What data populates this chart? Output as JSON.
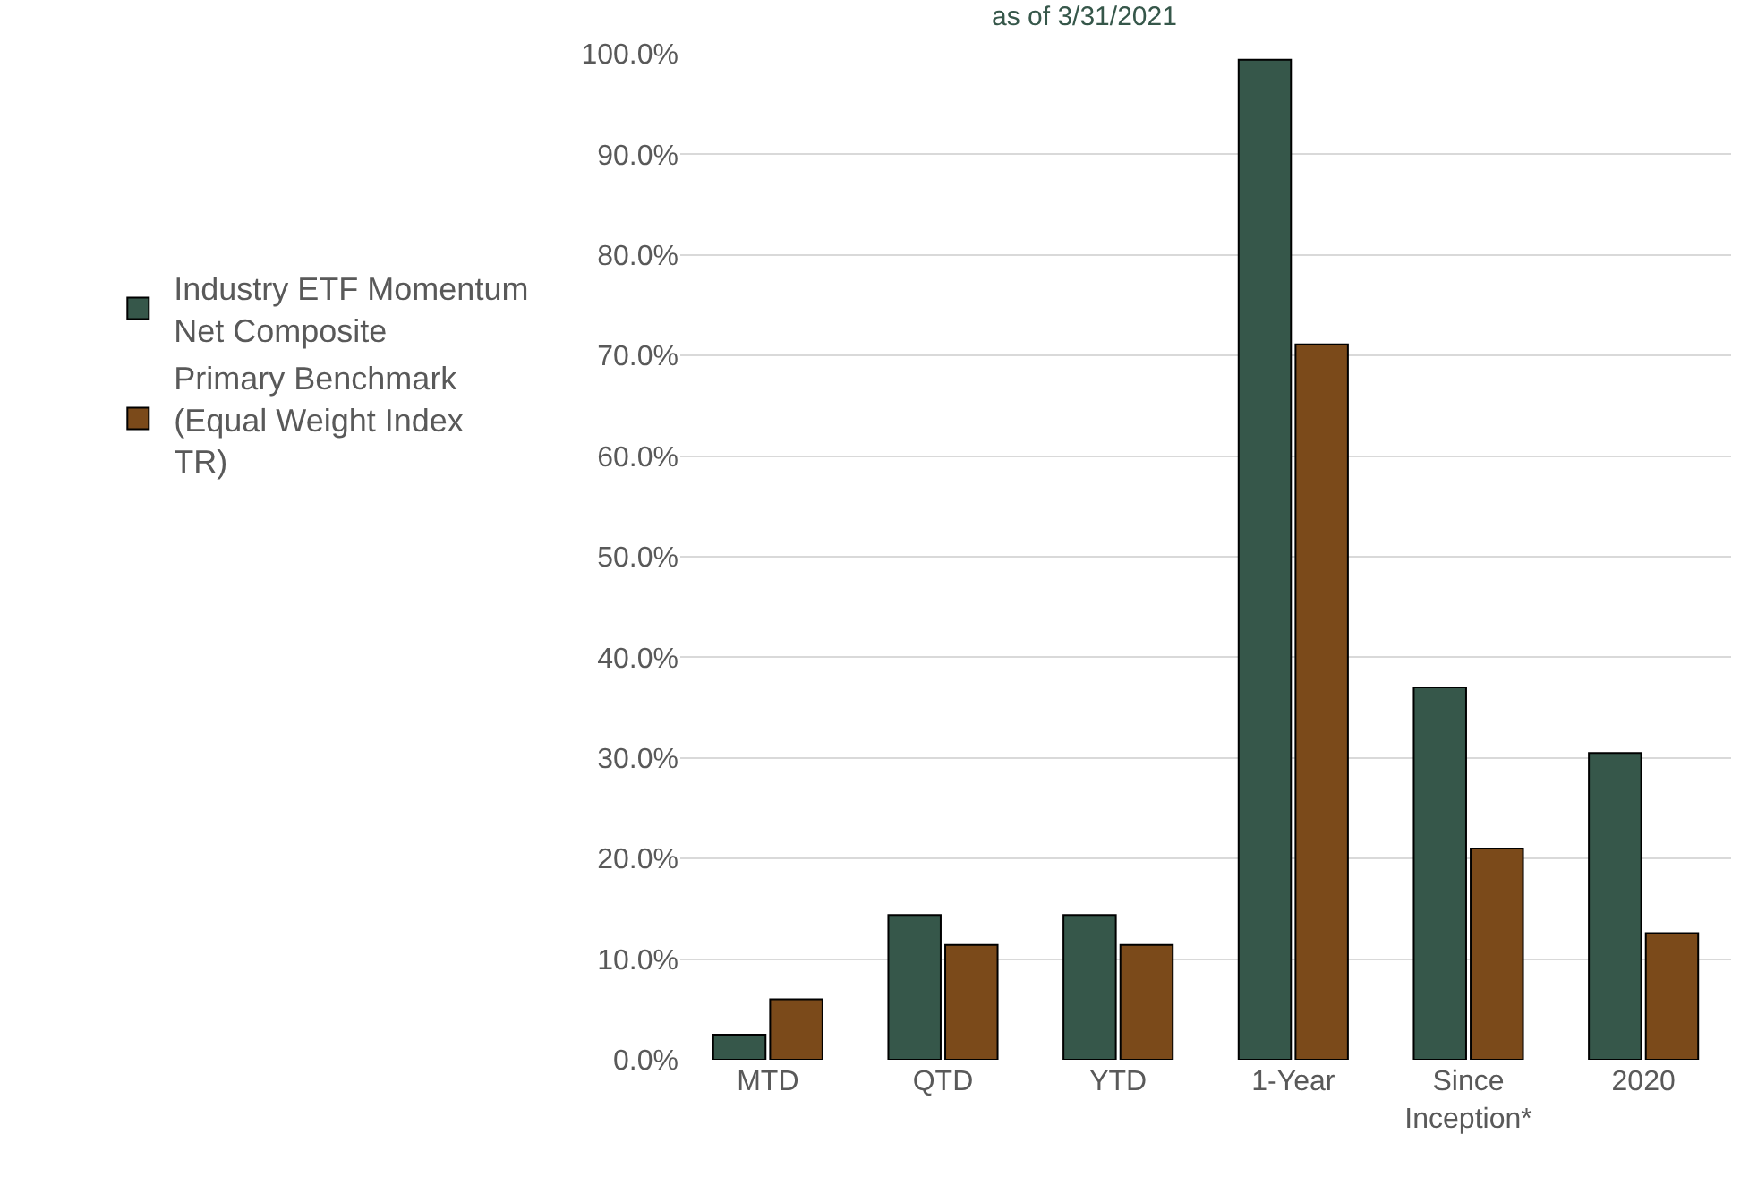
{
  "chart_data": {
    "type": "bar",
    "title": "as of 3/31/2021",
    "categories": [
      "MTD",
      "QTD",
      "YTD",
      "1-Year",
      "Since Inception*",
      "2020"
    ],
    "series": [
      {
        "name": "Industry ETF Momentum Net Composite",
        "color": "#36574a",
        "values": [
          2.5,
          14.4,
          14.4,
          99.4,
          37.0,
          30.5
        ]
      },
      {
        "name": "Primary Benchmark (Equal Weight Index TR)",
        "color": "#7b4a1a",
        "values": [
          6.0,
          11.4,
          11.4,
          71.1,
          21.0,
          12.6
        ]
      }
    ],
    "ylim": [
      0,
      100
    ],
    "yticks": [
      {
        "value": 0,
        "label": "0.0%"
      },
      {
        "value": 10,
        "label": "10.0%"
      },
      {
        "value": 20,
        "label": "20.0%"
      },
      {
        "value": 30,
        "label": "30.0%"
      },
      {
        "value": 40,
        "label": "40.0%"
      },
      {
        "value": 50,
        "label": "50.0%"
      },
      {
        "value": 60,
        "label": "60.0%"
      },
      {
        "value": 70,
        "label": "70.0%"
      },
      {
        "value": 80,
        "label": "80.0%"
      },
      {
        "value": 90,
        "label": "90.0%"
      },
      {
        "value": 100,
        "label": "100.0%"
      }
    ],
    "grid": "y",
    "legend": "left"
  }
}
